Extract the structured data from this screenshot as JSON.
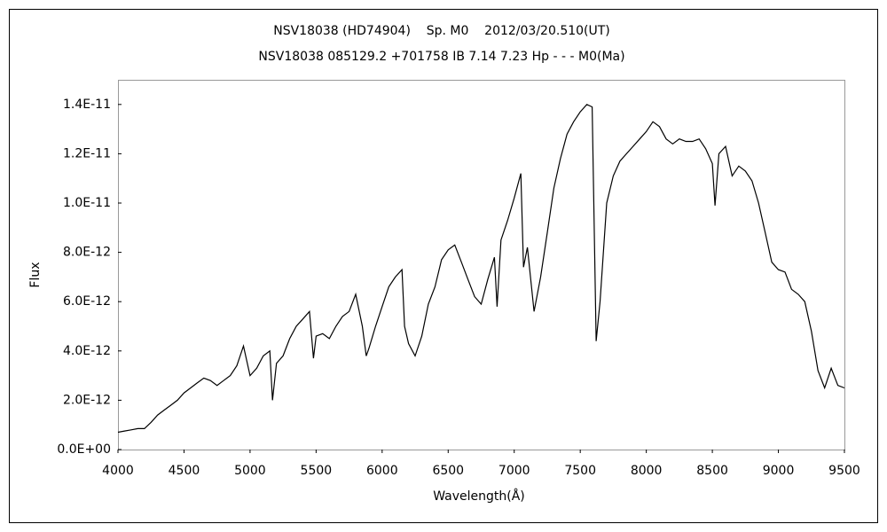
{
  "chart_data": {
    "type": "line",
    "title": "NSV18038 (HD74904)    Sp. M0    2012/03/20.510(UT)",
    "subtitle": "NSV18038 085129.2 +701758 IB 7.14 7.23 Hp - - - M0(Ma)",
    "xlabel": "Wavelength(Å)",
    "ylabel": "Flux",
    "color": "#000000",
    "grid": false,
    "xlim": [
      4000,
      9500
    ],
    "xticks": [
      4000,
      4500,
      5000,
      5500,
      6000,
      6500,
      7000,
      7500,
      8000,
      8500,
      9000,
      9500
    ],
    "ylim": [
      0,
      1.5e-11
    ],
    "yticks": [
      {
        "value": 0,
        "label": "0.0E+00"
      },
      {
        "value": 2e-12,
        "label": "2.0E-12"
      },
      {
        "value": 4e-12,
        "label": "4.0E-12"
      },
      {
        "value": 6e-12,
        "label": "6.0E-12"
      },
      {
        "value": 8e-12,
        "label": "8.0E-12"
      },
      {
        "value": 1e-11,
        "label": "1.0E-11"
      },
      {
        "value": 1.2e-11,
        "label": "1.2E-11"
      },
      {
        "value": 1.4e-11,
        "label": "1.4E-11"
      }
    ],
    "x": [
      4000,
      4050,
      4100,
      4150,
      4200,
      4250,
      4300,
      4350,
      4400,
      4450,
      4500,
      4550,
      4600,
      4650,
      4700,
      4750,
      4800,
      4850,
      4900,
      4950,
      5000,
      5050,
      5100,
      5150,
      5170,
      5200,
      5250,
      5300,
      5350,
      5400,
      5450,
      5480,
      5500,
      5550,
      5600,
      5650,
      5700,
      5750,
      5800,
      5850,
      5880,
      5900,
      5950,
      6000,
      6050,
      6100,
      6150,
      6170,
      6200,
      6250,
      6300,
      6350,
      6400,
      6450,
      6500,
      6550,
      6600,
      6650,
      6700,
      6750,
      6800,
      6850,
      6870,
      6900,
      6950,
      7000,
      7050,
      7070,
      7100,
      7150,
      7200,
      7250,
      7300,
      7350,
      7400,
      7450,
      7500,
      7550,
      7590,
      7620,
      7650,
      7700,
      7750,
      7800,
      7850,
      7900,
      7950,
      8000,
      8050,
      8100,
      8150,
      8200,
      8250,
      8300,
      8350,
      8400,
      8450,
      8500,
      8520,
      8550,
      8600,
      8650,
      8700,
      8750,
      8800,
      8850,
      8900,
      8950,
      9000,
      9050,
      9100,
      9150,
      9200,
      9250,
      9300,
      9350,
      9400,
      9450,
      9500
    ],
    "values": [
      7e-13,
      7.5e-13,
      8e-13,
      8.5e-13,
      8.5e-13,
      1.1e-12,
      1.4e-12,
      1.6e-12,
      1.8e-12,
      2e-12,
      2.3e-12,
      2.5e-12,
      2.7e-12,
      2.9e-12,
      2.8e-12,
      2.6e-12,
      2.8e-12,
      3e-12,
      3.4e-12,
      4.2e-12,
      3e-12,
      3.3e-12,
      3.8e-12,
      4e-12,
      2e-12,
      3.5e-12,
      3.8e-12,
      4.5e-12,
      5e-12,
      5.3e-12,
      5.6e-12,
      3.7e-12,
      4.6e-12,
      4.7e-12,
      4.5e-12,
      5e-12,
      5.4e-12,
      5.6e-12,
      6.3e-12,
      5e-12,
      3.8e-12,
      4.1e-12,
      5e-12,
      5.8e-12,
      6.6e-12,
      7e-12,
      7.3e-12,
      5e-12,
      4.3e-12,
      3.8e-12,
      4.6e-12,
      5.9e-12,
      6.6e-12,
      7.7e-12,
      8.1e-12,
      8.3e-12,
      7.6e-12,
      6.9e-12,
      6.2e-12,
      5.9e-12,
      6.9e-12,
      7.8e-12,
      5.8e-12,
      8.5e-12,
      9.3e-12,
      1.02e-11,
      1.12e-11,
      7.4e-12,
      8.2e-12,
      5.6e-12,
      7e-12,
      8.8e-12,
      1.06e-11,
      1.18e-11,
      1.28e-11,
      1.33e-11,
      1.37e-11,
      1.4e-11,
      1.39e-11,
      4.4e-12,
      6e-12,
      1e-11,
      1.11e-11,
      1.17e-11,
      1.2e-11,
      1.23e-11,
      1.26e-11,
      1.29e-11,
      1.33e-11,
      1.31e-11,
      1.26e-11,
      1.24e-11,
      1.26e-11,
      1.25e-11,
      1.25e-11,
      1.26e-11,
      1.22e-11,
      1.16e-11,
      9.9e-12,
      1.2e-11,
      1.23e-11,
      1.11e-11,
      1.15e-11,
      1.13e-11,
      1.09e-11,
      1e-11,
      8.8e-12,
      7.6e-12,
      7.3e-12,
      7.2e-12,
      6.5e-12,
      6.3e-12,
      6e-12,
      4.8e-12,
      3.2e-12,
      2.5e-12,
      3.3e-12,
      2.6e-12,
      2.5e-12
    ]
  }
}
